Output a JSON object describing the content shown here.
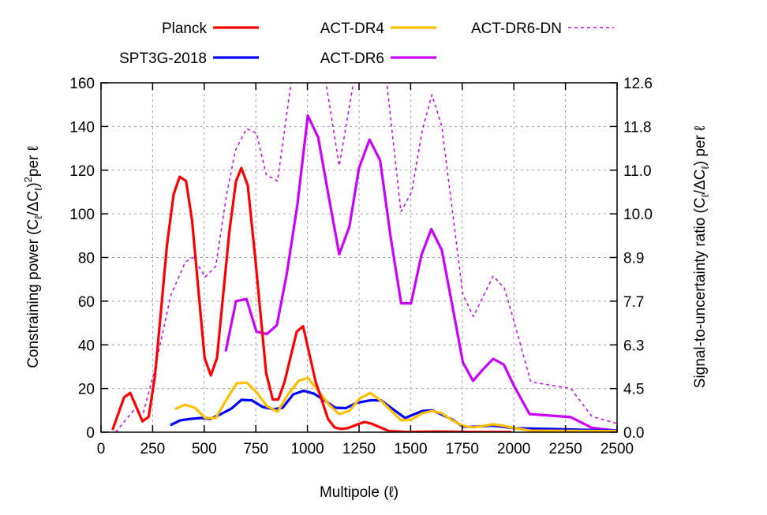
{
  "chart_data": {
    "type": "line",
    "xlabel": "Multipole (ℓ)",
    "ylabel_parts": [
      "Constraining power (C",
      "ℓ",
      "/ΔC",
      "ℓ",
      ")",
      "2",
      "per ℓ"
    ],
    "y2label_parts": [
      "Signal-to-uncertainty ratio (C",
      "ℓ",
      "/ΔC",
      "ℓ",
      ") per ℓ"
    ],
    "xlim": [
      0,
      2500
    ],
    "ylim": [
      0,
      160
    ],
    "y2_scale": "sqrt of left axis",
    "grid": true,
    "legend_placement": "top, outside plot",
    "x_ticks": [
      "0",
      "250",
      "500",
      "750",
      "1000",
      "1250",
      "1500",
      "1750",
      "2000",
      "2250",
      "2500"
    ],
    "y_ticks": [
      "0",
      "20",
      "40",
      "60",
      "80",
      "100",
      "120",
      "140",
      "160"
    ],
    "y2_ticks": [
      "0.0",
      "4.5",
      "6.3",
      "7.7",
      "8.9",
      "10.0",
      "11.0",
      "11.8",
      "12.6"
    ],
    "series": [
      {
        "name": "Planck",
        "color": "#ff0000",
        "dash": false,
        "points": [
          [
            56,
            1
          ],
          [
            112,
            16
          ],
          [
            142,
            18
          ],
          [
            201,
            5
          ],
          [
            231,
            7
          ],
          [
            262,
            26
          ],
          [
            320,
            86
          ],
          [
            352,
            109
          ],
          [
            381,
            117
          ],
          [
            412,
            115
          ],
          [
            441,
            97
          ],
          [
            502,
            34
          ],
          [
            532,
            26
          ],
          [
            562,
            34
          ],
          [
            622,
            92
          ],
          [
            654,
            115
          ],
          [
            680,
            121
          ],
          [
            711,
            113
          ],
          [
            747,
            80
          ],
          [
            800,
            27
          ],
          [
            832,
            15
          ],
          [
            859,
            15
          ],
          [
            889,
            23
          ],
          [
            948,
            46
          ],
          [
            979,
            48.5
          ],
          [
            1040,
            23
          ],
          [
            1100,
            6
          ],
          [
            1131,
            2.2
          ],
          [
            1161,
            1.5
          ],
          [
            1193,
            1.8
          ],
          [
            1256,
            4
          ],
          [
            1276,
            4.7
          ],
          [
            1307,
            4
          ],
          [
            1396,
            0.5
          ],
          [
            1486,
            0.1
          ],
          [
            1600,
            0.3
          ],
          [
            1700,
            0.2
          ],
          [
            1800,
            0.1
          ],
          [
            1988,
            0.1
          ]
        ]
      },
      {
        "name": "SPT3G-2018",
        "color": "#0000ff",
        "dash": false,
        "points": [
          [
            336,
            3.2
          ],
          [
            384,
            5.4
          ],
          [
            435,
            6.1
          ],
          [
            485,
            6.5
          ],
          [
            530,
            6.1
          ],
          [
            581,
            8.3
          ],
          [
            632,
            10.8
          ],
          [
            680,
            14.8
          ],
          [
            731,
            14.6
          ],
          [
            782,
            11.6
          ],
          [
            834,
            10.5
          ],
          [
            880,
            11.2
          ],
          [
            931,
            17.3
          ],
          [
            982,
            19
          ],
          [
            1033,
            17.6
          ],
          [
            1084,
            14.4
          ],
          [
            1135,
            11.2
          ],
          [
            1186,
            11
          ],
          [
            1237,
            13.4
          ],
          [
            1305,
            14.6
          ],
          [
            1356,
            14.6
          ],
          [
            1473,
            6.5
          ],
          [
            1556,
            9.7
          ],
          [
            1607,
            10
          ],
          [
            1702,
            5.8
          ],
          [
            1753,
            2.5
          ],
          [
            1804,
            2.5
          ],
          [
            1900,
            3
          ],
          [
            2007,
            1.8
          ],
          [
            2250,
            1.3
          ],
          [
            2499,
            0.7
          ]
        ]
      },
      {
        "name": "ACT-DR4",
        "color": "#ffbf00",
        "dash": false,
        "points": [
          [
            358,
            10.5
          ],
          [
            406,
            12.6
          ],
          [
            454,
            11.2
          ],
          [
            505,
            6.5
          ],
          [
            556,
            6.5
          ],
          [
            607,
            14.8
          ],
          [
            657,
            22.4
          ],
          [
            706,
            22.7
          ],
          [
            753,
            18.4
          ],
          [
            804,
            11.9
          ],
          [
            855,
            9.4
          ],
          [
            906,
            17.3
          ],
          [
            957,
            23.5
          ],
          [
            1002,
            24.9
          ],
          [
            1052,
            19
          ],
          [
            1104,
            12.6
          ],
          [
            1154,
            8.3
          ],
          [
            1203,
            9.7
          ],
          [
            1254,
            15.5
          ],
          [
            1305,
            18
          ],
          [
            1356,
            14.4
          ],
          [
            1454,
            5.4
          ],
          [
            1505,
            5.8
          ],
          [
            1556,
            8.7
          ],
          [
            1607,
            9.7
          ],
          [
            1651,
            8.7
          ],
          [
            1702,
            5.4
          ],
          [
            1753,
            2.9
          ],
          [
            1804,
            2.2
          ],
          [
            1900,
            3.6
          ],
          [
            1950,
            2.9
          ],
          [
            2007,
            1.8
          ],
          [
            2082,
            0.7
          ],
          [
            2300,
            0.6
          ],
          [
            2499,
            0.5
          ]
        ]
      },
      {
        "name": "ACT-DR6",
        "color": "#cc00ff",
        "dash": false,
        "points": [
          [
            604,
            37
          ],
          [
            654,
            60
          ],
          [
            705,
            61
          ],
          [
            753,
            46
          ],
          [
            804,
            45
          ],
          [
            852,
            49
          ],
          [
            900,
            72.5
          ],
          [
            951,
            104
          ],
          [
            1002,
            145
          ],
          [
            1052,
            135
          ],
          [
            1104,
            107.5
          ],
          [
            1154,
            81.5
          ],
          [
            1203,
            94
          ],
          [
            1250,
            121
          ],
          [
            1301,
            134
          ],
          [
            1352,
            124.5
          ],
          [
            1403,
            89.5
          ],
          [
            1454,
            59
          ],
          [
            1502,
            59
          ],
          [
            1552,
            81
          ],
          [
            1600,
            93
          ],
          [
            1651,
            83.4
          ],
          [
            1702,
            58
          ],
          [
            1753,
            32
          ],
          [
            1802,
            23.5
          ],
          [
            1853,
            29
          ],
          [
            1900,
            33.6
          ],
          [
            1951,
            31
          ],
          [
            2002,
            21
          ],
          [
            2076,
            8.3
          ],
          [
            2276,
            6.9
          ],
          [
            2378,
            2
          ],
          [
            2499,
            0.7
          ]
        ]
      },
      {
        "name": "ACT-DR6-DN",
        "color": "#cc00ff",
        "dash": true,
        "points": [
          [
            71,
            0
          ],
          [
            158,
            10
          ],
          [
            205,
            9
          ],
          [
            256,
            27
          ],
          [
            339,
            63
          ],
          [
            409,
            78
          ],
          [
            447,
            80
          ],
          [
            505,
            71
          ],
          [
            556,
            76
          ],
          [
            607,
            108
          ],
          [
            651,
            129
          ],
          [
            705,
            139
          ],
          [
            753,
            137
          ],
          [
            800,
            118
          ],
          [
            855,
            115
          ],
          [
            921,
            160
          ],
          [
            1000,
            200
          ],
          [
            1090,
            160
          ],
          [
            1154,
            122
          ],
          [
            1223,
            160
          ],
          [
            1300,
            190
          ],
          [
            1384,
            160
          ],
          [
            1453,
            101
          ],
          [
            1505,
            110
          ],
          [
            1556,
            138
          ],
          [
            1603,
            154.5
          ],
          [
            1651,
            140
          ],
          [
            1753,
            63
          ],
          [
            1804,
            53
          ],
          [
            1900,
            71.5
          ],
          [
            1954,
            66
          ],
          [
            2007,
            48.7
          ],
          [
            2082,
            23
          ],
          [
            2276,
            20
          ],
          [
            2378,
            7.2
          ],
          [
            2499,
            4
          ]
        ]
      }
    ]
  }
}
